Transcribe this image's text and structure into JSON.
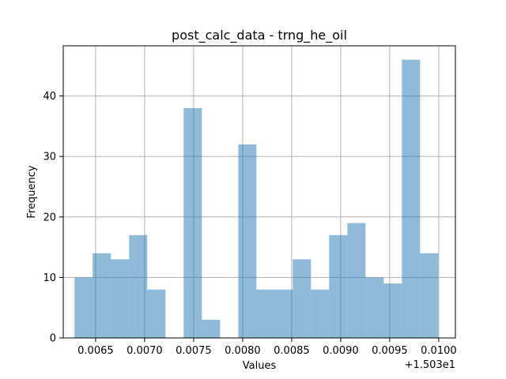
{
  "chart_data": {
    "type": "bar",
    "title": "post_calc_data - trng_he_oil",
    "xlabel": "Values",
    "ylabel": "Frequency",
    "offset_label": "+1.503e1",
    "xlim": [
      0.00617,
      0.01017
    ],
    "ylim": [
      0,
      48.3
    ],
    "x_ticks": [
      {
        "value": 0.0065,
        "label": "0.0065"
      },
      {
        "value": 0.007,
        "label": "0.0070"
      },
      {
        "value": 0.0075,
        "label": "0.0075"
      },
      {
        "value": 0.008,
        "label": "0.0080"
      },
      {
        "value": 0.0085,
        "label": "0.0085"
      },
      {
        "value": 0.009,
        "label": "0.0090"
      },
      {
        "value": 0.0095,
        "label": "0.0095"
      },
      {
        "value": 0.01,
        "label": "0.0100"
      }
    ],
    "y_ticks": [
      {
        "value": 0,
        "label": "0"
      },
      {
        "value": 10,
        "label": "10"
      },
      {
        "value": 20,
        "label": "20"
      },
      {
        "value": 30,
        "label": "30"
      },
      {
        "value": 40,
        "label": "40"
      }
    ],
    "grid": true,
    "bar_color": "#1f77b4",
    "bar_opacity": 0.5,
    "bins": [
      {
        "start": 0.006285,
        "end": 0.00647,
        "count": 10
      },
      {
        "start": 0.00647,
        "end": 0.006656,
        "count": 14
      },
      {
        "start": 0.006656,
        "end": 0.006842,
        "count": 13
      },
      {
        "start": 0.006842,
        "end": 0.007027,
        "count": 17
      },
      {
        "start": 0.007027,
        "end": 0.007213,
        "count": 8
      },
      {
        "start": 0.007213,
        "end": 0.007398,
        "count": 0
      },
      {
        "start": 0.007398,
        "end": 0.007584,
        "count": 38
      },
      {
        "start": 0.007584,
        "end": 0.007769,
        "count": 3
      },
      {
        "start": 0.007769,
        "end": 0.007955,
        "count": 0
      },
      {
        "start": 0.007955,
        "end": 0.00814,
        "count": 32
      },
      {
        "start": 0.00814,
        "end": 0.008326,
        "count": 8
      },
      {
        "start": 0.008326,
        "end": 0.008511,
        "count": 8
      },
      {
        "start": 0.008511,
        "end": 0.008697,
        "count": 13
      },
      {
        "start": 0.008697,
        "end": 0.008882,
        "count": 8
      },
      {
        "start": 0.008882,
        "end": 0.009068,
        "count": 17
      },
      {
        "start": 0.009068,
        "end": 0.009253,
        "count": 19
      },
      {
        "start": 0.009253,
        "end": 0.009439,
        "count": 10
      },
      {
        "start": 0.009439,
        "end": 0.009624,
        "count": 9
      },
      {
        "start": 0.009624,
        "end": 0.00981,
        "count": 46
      },
      {
        "start": 0.00981,
        "end": 0.009995,
        "count": 14
      }
    ]
  }
}
